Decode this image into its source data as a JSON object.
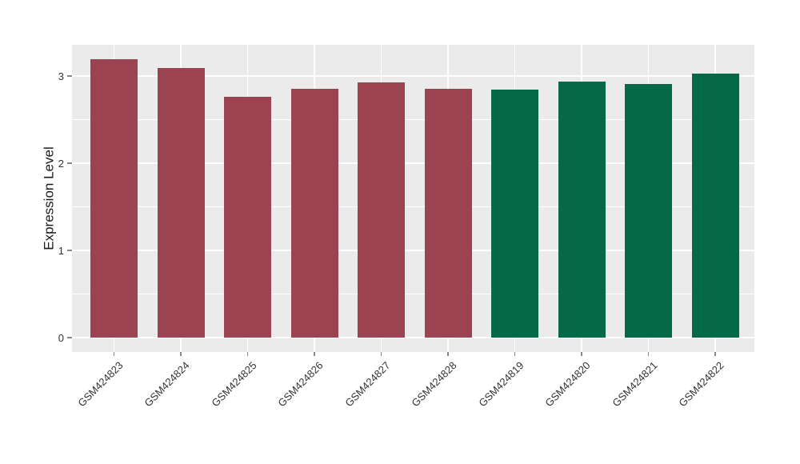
{
  "chart_data": {
    "type": "bar",
    "title": "",
    "xlabel": "",
    "ylabel": "Expression Level",
    "categories": [
      "GSM424823",
      "GSM424824",
      "GSM424825",
      "GSM424826",
      "GSM424827",
      "GSM424828",
      "GSM424819",
      "GSM424820",
      "GSM424821",
      "GSM424822"
    ],
    "values": [
      3.19,
      3.09,
      2.76,
      2.85,
      2.93,
      2.85,
      2.84,
      2.94,
      2.91,
      3.03
    ],
    "bar_colors": [
      "#9c4351",
      "#9c4351",
      "#9c4351",
      "#9c4351",
      "#9c4351",
      "#9c4351",
      "#046946",
      "#046946",
      "#046946",
      "#046946"
    ],
    "y_ticks": [
      0,
      1,
      2,
      3
    ],
    "y_minor_ticks": [
      0.5,
      1.5,
      2.5
    ],
    "ylim": [
      -0.17,
      3.36
    ],
    "x_tick_rotation_deg": 45,
    "legend": "none",
    "grid": "white major+minor horizontal, white major vertical per category, on gray panel"
  },
  "colors": {
    "figure_background": "#ffffff",
    "panel_background": "#ebebeb",
    "gridline": "#ffffff",
    "tick_mark": "#878787",
    "tick_label": "#333333",
    "axis_title": "#1a1a1a"
  }
}
